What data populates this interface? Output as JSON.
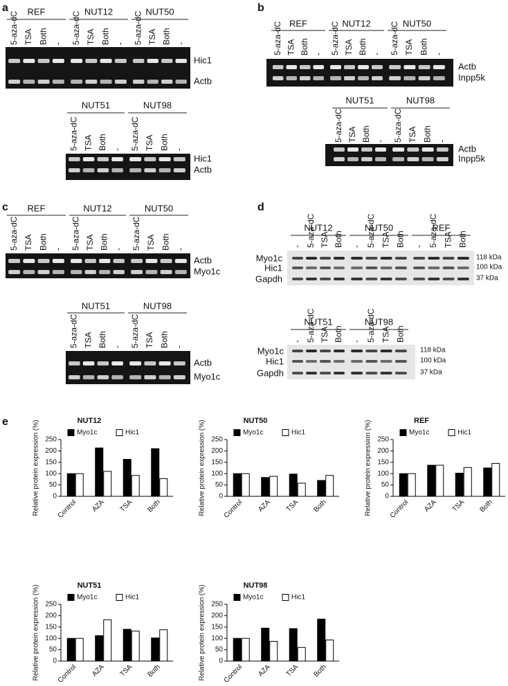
{
  "panels": [
    {
      "label": "a",
      "blots": [
        {
          "groups": [
            {
              "name": "REF",
              "lanes": [
                "5-aza-dC",
                "TSA",
                "Both",
                "-"
              ]
            },
            {
              "name": "NUT12",
              "lanes": [
                "5-aza-dC",
                "TSA",
                "Both",
                "-"
              ]
            },
            {
              "name": "NUT50",
              "lanes": [
                "5-aza-dC",
                "TSA",
                "Both",
                "-"
              ]
            }
          ],
          "bands": [
            "Hic1",
            "Actb"
          ]
        },
        {
          "groups": [
            {
              "name": "NUT51",
              "lanes": [
                "5-aza-dC",
                "TSA",
                "Both",
                "-"
              ]
            },
            {
              "name": "NUT98",
              "lanes": [
                "5-aza-dC",
                "TSA",
                "Both",
                "-"
              ]
            }
          ],
          "bands": [
            "Hic1",
            "Actb"
          ]
        }
      ]
    },
    {
      "label": "b",
      "blots": [
        {
          "groups": [
            {
              "name": "REF",
              "lanes": [
                "5-aza-dC",
                "TSA",
                "Both",
                "-"
              ]
            },
            {
              "name": "NUT12",
              "lanes": [
                "5-aza-dC",
                "TSA",
                "Both",
                "-"
              ]
            },
            {
              "name": "NUT50",
              "lanes": [
                "5-aza-dC",
                "TSA",
                "Both",
                "-"
              ]
            }
          ],
          "bands": [
            "Actb",
            "Inpp5k"
          ]
        },
        {
          "groups": [
            {
              "name": "NUT51",
              "lanes": [
                "5-aza-dC",
                "TSA",
                "Both",
                "-"
              ]
            },
            {
              "name": "NUT98",
              "lanes": [
                "5-aza-dC",
                "TSA",
                "Both",
                "-"
              ]
            }
          ],
          "bands": [
            "Actb",
            "Inpp5k"
          ]
        }
      ]
    },
    {
      "label": "c",
      "blots": [
        {
          "groups": [
            {
              "name": "REF",
              "lanes": [
                "5-aza-dC",
                "TSA",
                "Both",
                "-"
              ]
            },
            {
              "name": "NUT12",
              "lanes": [
                "5-aza-dC",
                "TSA",
                "Both",
                "-"
              ]
            },
            {
              "name": "NUT50",
              "lanes": [
                "5-aza-dC",
                "TSA",
                "Both",
                "-"
              ]
            }
          ],
          "bands": [
            "Actb",
            "Myo1c"
          ]
        },
        {
          "groups": [
            {
              "name": "NUT51",
              "lanes": [
                "5-aza-dC",
                "TSA",
                "Both",
                "-"
              ]
            },
            {
              "name": "NUT98",
              "lanes": [
                "5-aza-dC",
                "TSA",
                "Both",
                "-"
              ]
            }
          ],
          "bands": [
            "Actb",
            "Myo1c"
          ]
        }
      ]
    },
    {
      "label": "d",
      "blots": [
        {
          "groups": [
            {
              "name": "NUT12",
              "lanes": [
                "-",
                "5-aza-dC",
                "TSA",
                "Both"
              ]
            },
            {
              "name": "NUT50",
              "lanes": [
                "-",
                "5-aza-dC",
                "TSA",
                "Both"
              ]
            },
            {
              "name": "REF",
              "lanes": [
                "-",
                "5-aza-dC",
                "TSA",
                "Both"
              ]
            }
          ],
          "bands": [
            "Myo1c",
            "Hic1",
            "Gapdh"
          ],
          "sizes": [
            "118 kDa",
            "100 kDa",
            "37 kDa"
          ]
        },
        {
          "groups": [
            {
              "name": "NUT51",
              "lanes": [
                "-",
                "5-aza-dC",
                "TSA",
                "Both"
              ]
            },
            {
              "name": "NUT98",
              "lanes": [
                "-",
                "5-aza-dC",
                "TSA",
                "Both"
              ]
            }
          ],
          "bands": [
            "Myo1c",
            "Hic1",
            "Gapdh"
          ],
          "sizes": [
            "118 kDa",
            "100 kDa",
            "37 kDa"
          ]
        }
      ]
    }
  ],
  "panel_e": {
    "label": "e"
  },
  "chart_data": [
    {
      "type": "bar",
      "title": "NUT12",
      "ylabel": "Relative protein expression (%)",
      "categories": [
        "Control",
        "AZA",
        "TSA",
        "Both"
      ],
      "series": [
        {
          "name": "Myo1c",
          "color": "#000000",
          "values": [
            100,
            213,
            163,
            210
          ]
        },
        {
          "name": "Hic1",
          "color": "#ffffff",
          "values": [
            100,
            110,
            92,
            78
          ]
        }
      ],
      "ylim": [
        0,
        250
      ],
      "yticks": [
        0,
        50,
        100,
        150,
        200,
        250
      ]
    },
    {
      "type": "bar",
      "title": "NUT50",
      "ylabel": "Relative protein expression (%)",
      "categories": [
        "Control",
        "AZA",
        "TSA",
        "Both"
      ],
      "series": [
        {
          "name": "Myo1c",
          "color": "#000000",
          "values": [
            100,
            83,
            98,
            70
          ]
        },
        {
          "name": "Hic1",
          "color": "#ffffff",
          "values": [
            100,
            88,
            58,
            92
          ]
        }
      ],
      "ylim": [
        0,
        250
      ],
      "yticks": [
        0,
        50,
        100,
        150,
        200,
        250
      ]
    },
    {
      "type": "bar",
      "title": "REF",
      "ylabel": "Relative protein expression (%)",
      "categories": [
        "Control",
        "AZA",
        "TSA",
        "Both"
      ],
      "series": [
        {
          "name": "Myo1c",
          "color": "#000000",
          "values": [
            100,
            137,
            102,
            125
          ]
        },
        {
          "name": "Hic1",
          "color": "#ffffff",
          "values": [
            100,
            137,
            127,
            145
          ]
        }
      ],
      "ylim": [
        0,
        250
      ],
      "yticks": [
        0,
        50,
        100,
        150,
        200,
        250
      ]
    },
    {
      "type": "bar",
      "title": "NUT51",
      "ylabel": "Relative protein expression (%)",
      "categories": [
        "Control",
        "AZA",
        "TSA",
        "Both"
      ],
      "series": [
        {
          "name": "Myo1c",
          "color": "#000000",
          "values": [
            100,
            112,
            140,
            102
          ]
        },
        {
          "name": "Hic1",
          "color": "#ffffff",
          "values": [
            100,
            182,
            132,
            138
          ]
        }
      ],
      "ylim": [
        0,
        250
      ],
      "yticks": [
        0,
        50,
        100,
        150,
        200,
        250
      ]
    },
    {
      "type": "bar",
      "title": "NUT98",
      "ylabel": "Relative protein expression (%)",
      "categories": [
        "Control",
        "AZA",
        "TSA",
        "Both"
      ],
      "series": [
        {
          "name": "Myo1c",
          "color": "#000000",
          "values": [
            100,
            145,
            143,
            185
          ]
        },
        {
          "name": "Hic1",
          "color": "#ffffff",
          "values": [
            100,
            87,
            60,
            93
          ]
        }
      ],
      "ylim": [
        0,
        250
      ],
      "yticks": [
        0,
        50,
        100,
        150,
        200,
        250
      ]
    }
  ]
}
